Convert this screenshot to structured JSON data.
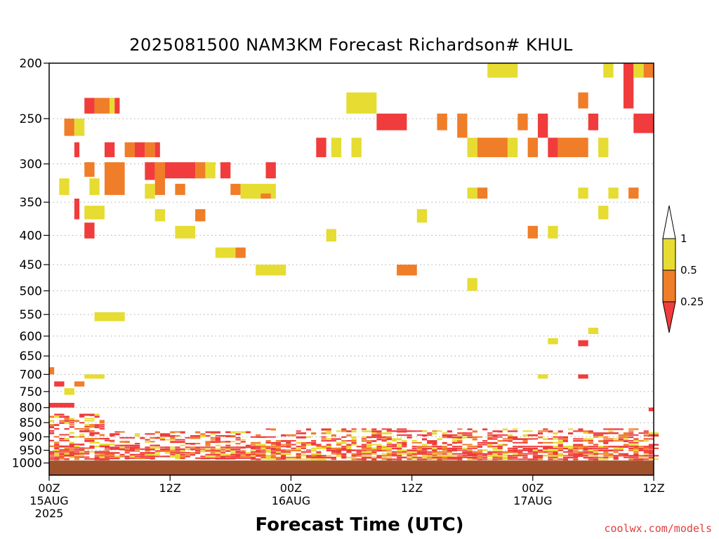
{
  "title": "2025081500 NAM3KM Forecast Richardson# KHUL",
  "credit": "coolwx.com/models",
  "chart_data": {
    "type": "heatmap",
    "title": "2025081500 NAM3KM Forecast Richardson# KHUL",
    "xlabel": "Forecast Time (UTC)",
    "ylabel": "",
    "y_scale": "log-pressure",
    "ylim": [
      1000,
      200
    ],
    "xlim": [
      0,
      60
    ],
    "y_ticks": [
      200,
      250,
      300,
      350,
      400,
      450,
      500,
      550,
      600,
      650,
      700,
      750,
      800,
      850,
      900,
      950,
      1000
    ],
    "y_gridlines": [
      250,
      300,
      350,
      400,
      450,
      500,
      550,
      600,
      650,
      700,
      750,
      800,
      850,
      900,
      950,
      1000
    ],
    "grid": true,
    "x_ticks": [
      {
        "hour": 0,
        "labels": [
          "00Z",
          "15AUG",
          "2025"
        ]
      },
      {
        "hour": 12,
        "labels": [
          "12Z"
        ]
      },
      {
        "hour": 24,
        "labels": [
          "00Z",
          "16AUG"
        ]
      },
      {
        "hour": 36,
        "labels": [
          "12Z"
        ]
      },
      {
        "hour": 48,
        "labels": [
          "00Z",
          "17AUG"
        ]
      },
      {
        "hour": 60,
        "labels": [
          "12Z"
        ]
      }
    ],
    "colorbar": {
      "placement": "right",
      "levels": [
        "1",
        "0.5",
        "0.25"
      ],
      "bins": [
        {
          "range": "0.5-1",
          "color": "#e6dc32"
        },
        {
          "range": "0.25-0.5",
          "color": "#f07d28"
        },
        {
          "range": "<0.25",
          "color": "#f03c3c"
        }
      ],
      "above_color": "#ffffff"
    },
    "colors": {
      "yellow": "#e6dc32",
      "orange": "#f07d28",
      "red": "#f03c3c",
      "ground": "#a0522d"
    },
    "ground_level_hpa": 990,
    "cells": [
      {
        "t0": 3.5,
        "t1": 4.5,
        "p0": 230,
        "p1": 245,
        "c": "red"
      },
      {
        "t0": 4.5,
        "t1": 6,
        "p0": 230,
        "p1": 245,
        "c": "orange"
      },
      {
        "t0": 6,
        "t1": 6.5,
        "p0": 230,
        "p1": 245,
        "c": "yellow"
      },
      {
        "t0": 6.5,
        "t1": 7,
        "p0": 230,
        "p1": 245,
        "c": "red"
      },
      {
        "t0": 1.5,
        "t1": 2.5,
        "p0": 250,
        "p1": 268,
        "c": "orange"
      },
      {
        "t0": 2.5,
        "t1": 3.5,
        "p0": 250,
        "p1": 268,
        "c": "yellow"
      },
      {
        "t0": 2.5,
        "t1": 3,
        "p0": 275,
        "p1": 292,
        "c": "red"
      },
      {
        "t0": 5.5,
        "t1": 6.5,
        "p0": 275,
        "p1": 292,
        "c": "red"
      },
      {
        "t0": 7.5,
        "t1": 8.5,
        "p0": 275,
        "p1": 292,
        "c": "orange"
      },
      {
        "t0": 8.5,
        "t1": 9.5,
        "p0": 275,
        "p1": 292,
        "c": "red"
      },
      {
        "t0": 9.5,
        "t1": 10.5,
        "p0": 275,
        "p1": 292,
        "c": "orange"
      },
      {
        "t0": 10.5,
        "t1": 11,
        "p0": 275,
        "p1": 292,
        "c": "red"
      },
      {
        "t0": 5.5,
        "t1": 7.5,
        "p0": 298,
        "p1": 340,
        "c": "orange"
      },
      {
        "t0": 3.5,
        "t1": 4.5,
        "p0": 298,
        "p1": 316,
        "c": "orange"
      },
      {
        "t0": 9.5,
        "t1": 10.5,
        "p0": 298,
        "p1": 320,
        "c": "red"
      },
      {
        "t0": 10.5,
        "t1": 11.5,
        "p0": 298,
        "p1": 340,
        "c": "orange"
      },
      {
        "t0": 11.5,
        "t1": 14.5,
        "p0": 298,
        "p1": 318,
        "c": "red"
      },
      {
        "t0": 14.5,
        "t1": 15.5,
        "p0": 298,
        "p1": 318,
        "c": "orange"
      },
      {
        "t0": 15.5,
        "t1": 16.5,
        "p0": 298,
        "p1": 318,
        "c": "yellow"
      },
      {
        "t0": 17,
        "t1": 18,
        "p0": 298,
        "p1": 318,
        "c": "red"
      },
      {
        "t0": 21.5,
        "t1": 22.5,
        "p0": 298,
        "p1": 318,
        "c": "red"
      },
      {
        "t0": 1,
        "t1": 2,
        "p0": 318,
        "p1": 340,
        "c": "yellow"
      },
      {
        "t0": 4,
        "t1": 5,
        "p0": 318,
        "p1": 340,
        "c": "yellow"
      },
      {
        "t0": 9.5,
        "t1": 10.5,
        "p0": 325,
        "p1": 345,
        "c": "yellow"
      },
      {
        "t0": 12.5,
        "t1": 13.5,
        "p0": 325,
        "p1": 340,
        "c": "orange"
      },
      {
        "t0": 18,
        "t1": 19,
        "p0": 325,
        "p1": 340,
        "c": "orange"
      },
      {
        "t0": 19,
        "t1": 22.5,
        "p0": 325,
        "p1": 345,
        "c": "yellow"
      },
      {
        "t0": 21,
        "t1": 22,
        "p0": 338,
        "p1": 345,
        "c": "orange"
      },
      {
        "t0": 2.5,
        "t1": 3,
        "p0": 345,
        "p1": 375,
        "c": "red"
      },
      {
        "t0": 3.5,
        "t1": 5.5,
        "p0": 355,
        "p1": 375,
        "c": "yellow"
      },
      {
        "t0": 3.5,
        "t1": 4.5,
        "p0": 380,
        "p1": 405,
        "c": "red"
      },
      {
        "t0": 10.5,
        "t1": 11.5,
        "p0": 360,
        "p1": 378,
        "c": "yellow"
      },
      {
        "t0": 14.5,
        "t1": 15.5,
        "p0": 360,
        "p1": 378,
        "c": "orange"
      },
      {
        "t0": 12.5,
        "t1": 14.5,
        "p0": 385,
        "p1": 405,
        "c": "yellow"
      },
      {
        "t0": 16.5,
        "t1": 18.5,
        "p0": 420,
        "p1": 438,
        "c": "yellow"
      },
      {
        "t0": 18.5,
        "t1": 19.5,
        "p0": 420,
        "p1": 438,
        "c": "orange"
      },
      {
        "t0": 20.5,
        "t1": 23.5,
        "p0": 450,
        "p1": 470,
        "c": "yellow"
      },
      {
        "t0": 4.5,
        "t1": 7.5,
        "p0": 545,
        "p1": 565,
        "c": "yellow"
      },
      {
        "t0": 3.5,
        "t1": 5.5,
        "p0": 700,
        "p1": 712,
        "c": "yellow"
      },
      {
        "t0": 26.5,
        "t1": 27.5,
        "p0": 270,
        "p1": 292,
        "c": "red"
      },
      {
        "t0": 28,
        "t1": 29,
        "p0": 270,
        "p1": 292,
        "c": "yellow"
      },
      {
        "t0": 30,
        "t1": 31,
        "p0": 270,
        "p1": 292,
        "c": "yellow"
      },
      {
        "t0": 29.5,
        "t1": 32.5,
        "p0": 225,
        "p1": 245,
        "c": "yellow"
      },
      {
        "t0": 32.5,
        "t1": 35.5,
        "p0": 245,
        "p1": 262,
        "c": "red"
      },
      {
        "t0": 27.5,
        "t1": 28.5,
        "p0": 390,
        "p1": 410,
        "c": "yellow"
      },
      {
        "t0": 34.5,
        "t1": 36.5,
        "p0": 450,
        "p1": 470,
        "c": "orange"
      },
      {
        "t0": 36.5,
        "t1": 37.5,
        "p0": 360,
        "p1": 380,
        "c": "yellow"
      },
      {
        "t0": 38.5,
        "t1": 39.5,
        "p0": 245,
        "p1": 262,
        "c": "orange"
      },
      {
        "t0": 40.5,
        "t1": 41.5,
        "p0": 245,
        "p1": 270,
        "c": "orange"
      },
      {
        "t0": 41.5,
        "t1": 42.5,
        "p0": 270,
        "p1": 292,
        "c": "yellow"
      },
      {
        "t0": 42.5,
        "t1": 45.5,
        "p0": 270,
        "p1": 292,
        "c": "orange"
      },
      {
        "t0": 45.5,
        "t1": 46.5,
        "p0": 270,
        "p1": 292,
        "c": "yellow"
      },
      {
        "t0": 43.5,
        "t1": 46.5,
        "p0": 200,
        "p1": 212,
        "c": "yellow"
      },
      {
        "t0": 46.5,
        "t1": 47.5,
        "p0": 245,
        "p1": 262,
        "c": "orange"
      },
      {
        "t0": 47.5,
        "t1": 48.5,
        "p0": 270,
        "p1": 292,
        "c": "orange"
      },
      {
        "t0": 48.5,
        "t1": 49.5,
        "p0": 245,
        "p1": 270,
        "c": "red"
      },
      {
        "t0": 49.5,
        "t1": 50.5,
        "p0": 270,
        "p1": 292,
        "c": "red"
      },
      {
        "t0": 50.5,
        "t1": 53.5,
        "p0": 270,
        "p1": 292,
        "c": "orange"
      },
      {
        "t0": 53.5,
        "t1": 54.5,
        "p0": 245,
        "p1": 262,
        "c": "red"
      },
      {
        "t0": 54.5,
        "t1": 55.5,
        "p0": 270,
        "p1": 292,
        "c": "yellow"
      },
      {
        "t0": 52.5,
        "t1": 53.5,
        "p0": 225,
        "p1": 240,
        "c": "orange"
      },
      {
        "t0": 41.5,
        "t1": 42.5,
        "p0": 330,
        "p1": 345,
        "c": "yellow"
      },
      {
        "t0": 42.5,
        "t1": 43.5,
        "p0": 330,
        "p1": 345,
        "c": "orange"
      },
      {
        "t0": 41.5,
        "t1": 42.5,
        "p0": 475,
        "p1": 500,
        "c": "yellow"
      },
      {
        "t0": 47.5,
        "t1": 48.5,
        "p0": 385,
        "p1": 405,
        "c": "orange"
      },
      {
        "t0": 49.5,
        "t1": 50.5,
        "p0": 385,
        "p1": 405,
        "c": "yellow"
      },
      {
        "t0": 52.5,
        "t1": 53.5,
        "p0": 330,
        "p1": 345,
        "c": "yellow"
      },
      {
        "t0": 55,
        "t1": 56,
        "p0": 200,
        "p1": 212,
        "c": "yellow"
      },
      {
        "t0": 57,
        "t1": 58,
        "p0": 200,
        "p1": 240,
        "c": "red"
      },
      {
        "t0": 58,
        "t1": 59,
        "p0": 200,
        "p1": 212,
        "c": "yellow"
      },
      {
        "t0": 59,
        "t1": 60,
        "p0": 200,
        "p1": 212,
        "c": "orange"
      },
      {
        "t0": 58,
        "t1": 60,
        "p0": 245,
        "p1": 265,
        "c": "red"
      },
      {
        "t0": 57.5,
        "t1": 58.5,
        "p0": 330,
        "p1": 345,
        "c": "orange"
      },
      {
        "t0": 55.5,
        "t1": 56.5,
        "p0": 330,
        "p1": 345,
        "c": "yellow"
      },
      {
        "t0": 54.5,
        "t1": 55.5,
        "p0": 355,
        "p1": 375,
        "c": "yellow"
      },
      {
        "t0": 49.5,
        "t1": 50.5,
        "p0": 605,
        "p1": 620,
        "c": "yellow"
      },
      {
        "t0": 53.5,
        "t1": 54.5,
        "p0": 580,
        "p1": 595,
        "c": "yellow"
      },
      {
        "t0": 52.5,
        "t1": 53.5,
        "p0": 610,
        "p1": 625,
        "c": "red"
      },
      {
        "t0": 48.5,
        "t1": 49.5,
        "p0": 700,
        "p1": 712,
        "c": "yellow"
      },
      {
        "t0": 52.5,
        "t1": 53.5,
        "p0": 700,
        "p1": 712,
        "c": "red"
      },
      {
        "t0": 0,
        "t1": 0.5,
        "p0": 680,
        "p1": 700,
        "c": "orange"
      },
      {
        "t0": 0.5,
        "t1": 1.5,
        "p0": 720,
        "p1": 735,
        "c": "red"
      },
      {
        "t0": 1.5,
        "t1": 2.5,
        "p0": 740,
        "p1": 760,
        "c": "yellow"
      },
      {
        "t0": 2.5,
        "t1": 3.5,
        "p0": 720,
        "p1": 735,
        "c": "orange"
      },
      {
        "t0": 0,
        "t1": 2.5,
        "p0": 785,
        "p1": 800,
        "c": "red"
      },
      {
        "t0": 59.5,
        "t1": 60,
        "p0": 800,
        "p1": 812,
        "c": "red"
      }
    ]
  }
}
